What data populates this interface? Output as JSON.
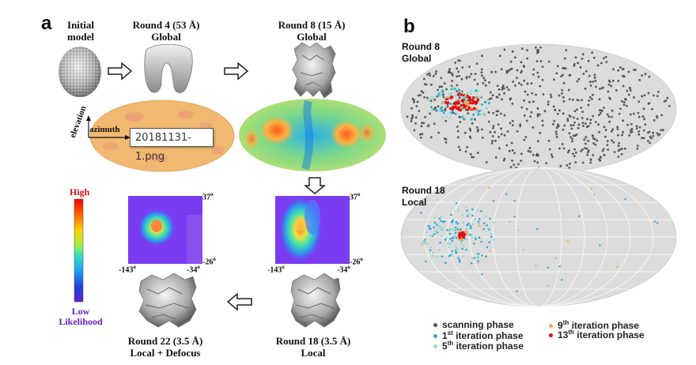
{
  "panel_a": {
    "letter": "a",
    "initial_label_1": "Initial",
    "initial_label_2": "model",
    "round4_label_1": "Round 4 (53 Å)",
    "round4_label_2": "Global",
    "round8_label_1": "Round 8 (15 Å)",
    "round8_label_2": "Global",
    "elevation_label": "elevation",
    "azimuth_label": "azimuth",
    "tooltip_text": "20181131-1.png",
    "colorbar_high": "High",
    "colorbar_low": "Low",
    "colorbar_likelihood": "Likelihood",
    "map1_top": "37",
    "map1_left": "-143",
    "map1_right": "-34",
    "map1_right_bottom": "-26",
    "map2_top": "37",
    "map2_left": "-143",
    "map2_right": "-34",
    "map2_right_bottom": "-26",
    "degree": "o",
    "round22_label_1": "Round 22 (3.5 Å)",
    "round22_label_2": "Local + Defocus",
    "round18_label_1": "Round 18 (3.5 Å)",
    "round18_label_2": "Local"
  },
  "panel_b": {
    "letter": "b",
    "top_label_1": "Round 8",
    "top_label_2": "Global",
    "bottom_label_1": "Round 18",
    "bottom_label_2": "Local",
    "legend": [
      {
        "name": "scanning phase",
        "num": "",
        "sup": "",
        "rest": "scanning phase",
        "color": "#555555"
      },
      {
        "name": "1st iteration phase",
        "num": "1",
        "sup": "st",
        "rest": " iteration phase",
        "color": "#29a8d6"
      },
      {
        "name": "5th iteration phase",
        "num": "5",
        "sup": "th",
        "rest": " iteration phase",
        "color": "#8fd9c8"
      },
      {
        "name": "9th iteration phase",
        "num": "9",
        "sup": "th",
        "rest": " iteration phase",
        "color": "#f0a860"
      },
      {
        "name": "13th iteration phase",
        "num": "13",
        "sup": "th",
        "rest": " iteration phase",
        "color": "#dd1111"
      }
    ]
  },
  "colors": {
    "orange_map": "#f0b870",
    "sphere_grey": "#dcdcdc",
    "heatmap_purple": "#7a3cf0",
    "scanning": "#555555",
    "iter1": "#29a8d6",
    "iter5": "#8fd9c8",
    "iter9": "#f0a860",
    "iter13": "#dd1111"
  }
}
